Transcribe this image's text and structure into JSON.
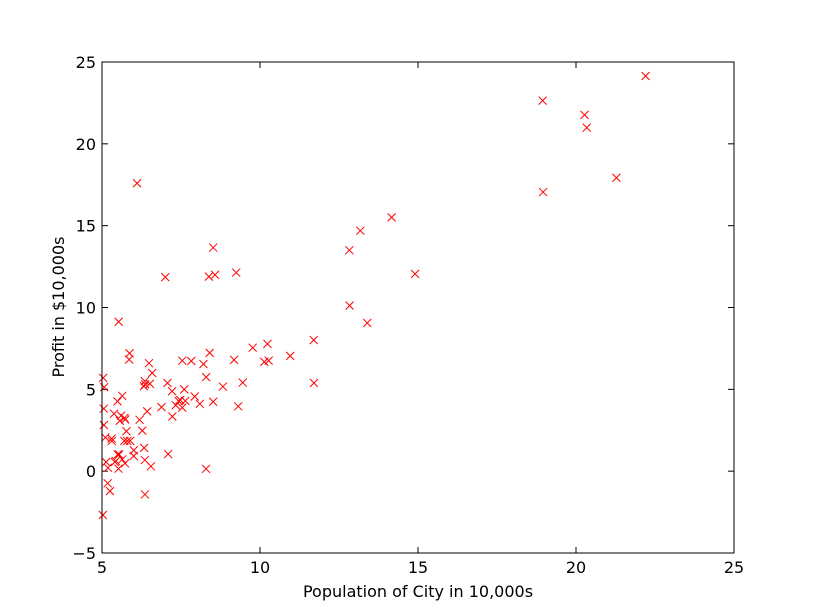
{
  "chart_data": {
    "type": "scatter",
    "title": "",
    "xlabel": "Population of City in 10,000s",
    "ylabel": "Profit in $10,000s",
    "xlim": [
      5,
      25
    ],
    "ylim": [
      -5,
      25
    ],
    "xticks": [
      5,
      10,
      15,
      20,
      25
    ],
    "yticks": [
      -5,
      0,
      5,
      10,
      15,
      20,
      25
    ],
    "xtick_labels": [
      "5",
      "10",
      "15",
      "20",
      "25"
    ],
    "ytick_labels": [
      "−5",
      "0",
      "5",
      "10",
      "15",
      "20",
      "25"
    ],
    "grid": false,
    "legend": "none",
    "marker": "x",
    "color": "#ff0000",
    "series": [
      {
        "x": [
          6.1101,
          5.5277,
          8.5186,
          7.0032,
          5.8598,
          8.3829,
          7.4764,
          8.5781,
          6.4862,
          5.0546,
          5.7107,
          14.164,
          5.734,
          8.4084,
          5.6407,
          5.3794,
          6.3654,
          5.1301,
          6.4296,
          7.0708,
          6.1891,
          20.27,
          5.4901,
          6.3261,
          5.5649,
          18.945,
          12.828,
          10.957,
          13.176,
          22.203,
          5.2524,
          6.5894,
          9.2482,
          5.8918,
          8.2111,
          7.9334,
          8.0959,
          5.6063,
          12.836,
          6.3534,
          5.4069,
          6.8825,
          11.708,
          5.7737,
          7.8247,
          7.0931,
          5.0702,
          5.8014,
          11.7,
          5.5416,
          7.5402,
          5.3077,
          7.4239,
          7.6031,
          6.3328,
          6.3589,
          6.2742,
          5.6397,
          9.3102,
          9.4536,
          8.8254,
          5.1793,
          21.279,
          14.908,
          18.959,
          7.2182,
          8.2951,
          10.236,
          5.4994,
          20.341,
          10.136,
          7.3345,
          6.0062,
          7.2259,
          5.0269,
          6.5479,
          7.5386,
          5.0365,
          10.274,
          5.1077,
          5.7292,
          5.1884,
          6.3557,
          9.7687,
          6.5159,
          8.5172,
          9.1802,
          6.002,
          5.5204,
          5.0594,
          5.7077,
          7.6366,
          5.8707,
          5.3054,
          8.2934,
          13.394,
          5.4369
        ],
        "y": [
          17.592,
          9.1302,
          13.662,
          11.854,
          6.8233,
          11.886,
          4.3483,
          12.0,
          6.5987,
          3.8166,
          3.2522,
          15.505,
          3.1551,
          7.2258,
          0.71618,
          3.5129,
          5.3048,
          0.56077,
          3.6518,
          5.3893,
          3.1386,
          21.767,
          4.263,
          5.1875,
          3.0825,
          22.638,
          13.501,
          7.0467,
          14.692,
          24.147,
          -1.22,
          5.9966,
          12.134,
          1.8495,
          6.5426,
          4.5623,
          4.1164,
          3.3928,
          10.117,
          5.4974,
          0.55657,
          3.9115,
          5.3854,
          2.4406,
          6.7318,
          1.0463,
          5.1337,
          1.844,
          8.0043,
          1.0179,
          6.7504,
          1.8396,
          4.2885,
          4.9981,
          1.4233,
          -1.4211,
          2.4756,
          4.6042,
          3.9624,
          5.4141,
          5.1694,
          -0.74279,
          17.929,
          12.054,
          17.054,
          4.8852,
          5.7442,
          7.7754,
          1.0173,
          20.992,
          6.6799,
          4.0259,
          1.2784,
          3.3411,
          -2.6807,
          0.29678,
          3.8845,
          5.7014,
          6.7526,
          2.0576,
          0.47953,
          0.20421,
          0.67861,
          7.5435,
          5.3436,
          4.2415,
          6.7981,
          0.92695,
          0.152,
          2.8214,
          1.8451,
          4.2959,
          7.2029,
          1.9869,
          0.14454,
          9.0551,
          0.61705
        ]
      }
    ]
  }
}
